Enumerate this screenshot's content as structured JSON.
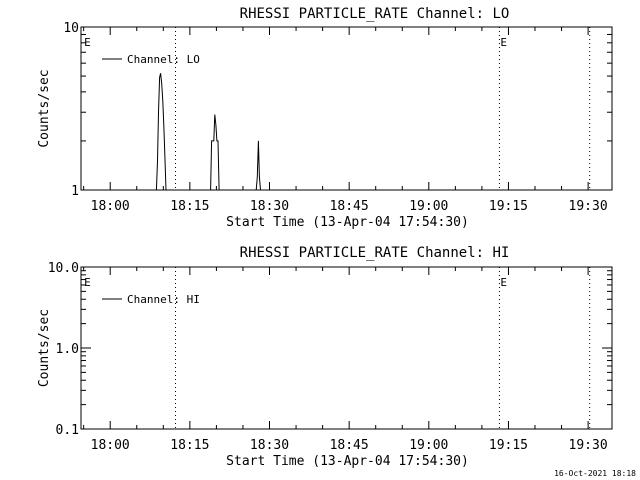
{
  "footer_timestamp": "16-Oct-2021 18:18",
  "chart_data": [
    {
      "type": "line",
      "title": "RHESSI PARTICLE_RATE Channel: LO",
      "xlabel": "Start Time (13-Apr-04 17:54:30)",
      "ylabel": "Counts/sec",
      "yscale": "log",
      "ylim": [
        1,
        10
      ],
      "xlim_minutes": [
        0,
        100
      ],
      "ytick_labels": [
        {
          "value": 10,
          "label": "10"
        },
        {
          "value": 1,
          "label": "1"
        }
      ],
      "xtick_labels": [
        {
          "minute": 5.5,
          "label": "18:00"
        },
        {
          "minute": 20.5,
          "label": "18:15"
        },
        {
          "minute": 35.5,
          "label": "18:30"
        },
        {
          "minute": 50.5,
          "label": "18:45"
        },
        {
          "minute": 65.5,
          "label": "19:00"
        },
        {
          "minute": 80.5,
          "label": "19:15"
        },
        {
          "minute": 95.5,
          "label": "19:30"
        }
      ],
      "legend": {
        "label": "Channel: LO",
        "placement": "top-left"
      },
      "markers": [
        {
          "minute": 0.4,
          "label": "E",
          "line": false
        },
        {
          "minute": 17.8,
          "label": "",
          "line": true
        },
        {
          "minute": 78.8,
          "label": "E",
          "line": true
        },
        {
          "minute": 95.8,
          "label": "",
          "line": true
        }
      ],
      "series": [
        {
          "x": [
            14.2,
            14.4,
            14.6,
            14.8,
            15.0,
            15.2,
            15.4,
            15.6,
            15.8,
            16.0,
            16.2,
            16.4,
            16.6,
            24.2,
            24.4,
            24.6,
            24.8,
            25.0,
            25.2,
            25.4,
            25.6,
            25.8,
            26.0,
            26.2,
            26.4,
            26.6,
            33.0,
            33.2,
            33.4,
            33.6,
            33.8
          ],
          "y": [
            1,
            1.5,
            3,
            4.9,
            5.2,
            4.5,
            3.5,
            2.5,
            1.6,
            1,
            1,
            1,
            1,
            1,
            1,
            2,
            2,
            2,
            2.9,
            2.5,
            2,
            2,
            1,
            1,
            1,
            1,
            1,
            1.2,
            2,
            1.2,
            1
          ]
        }
      ]
    },
    {
      "type": "line",
      "title": "RHESSI PARTICLE_RATE Channel: HI",
      "xlabel": "Start Time (13-Apr-04 17:54:30)",
      "ylabel": "Counts/sec",
      "yscale": "log",
      "ylim": [
        0.1,
        10
      ],
      "xlim_minutes": [
        0,
        100
      ],
      "ytick_labels": [
        {
          "value": 10,
          "label": "10.0"
        },
        {
          "value": 1,
          "label": "1.0"
        },
        {
          "value": 0.1,
          "label": "0.1"
        }
      ],
      "xtick_labels": [
        {
          "minute": 5.5,
          "label": "18:00"
        },
        {
          "minute": 20.5,
          "label": "18:15"
        },
        {
          "minute": 35.5,
          "label": "18:30"
        },
        {
          "minute": 50.5,
          "label": "18:45"
        },
        {
          "minute": 65.5,
          "label": "19:00"
        },
        {
          "minute": 80.5,
          "label": "19:15"
        },
        {
          "minute": 95.5,
          "label": "19:30"
        }
      ],
      "legend": {
        "label": "Channel: HI",
        "placement": "top-left"
      },
      "markers": [
        {
          "minute": 0.4,
          "label": "E",
          "line": false
        },
        {
          "minute": 17.8,
          "label": "",
          "line": true
        },
        {
          "minute": 78.8,
          "label": "E",
          "line": true
        },
        {
          "minute": 95.8,
          "label": "",
          "line": true
        }
      ],
      "series": [
        {
          "x": [],
          "y": []
        }
      ]
    }
  ]
}
